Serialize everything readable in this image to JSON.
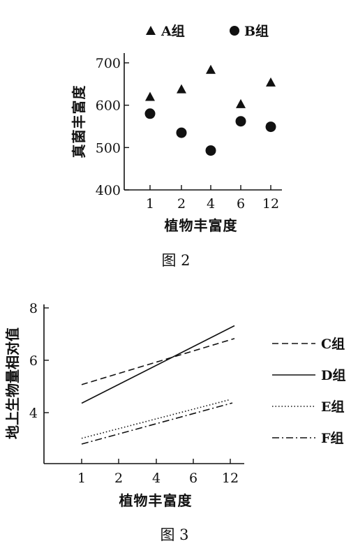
{
  "chart_data": [
    {
      "type": "scatter",
      "legend": {
        "placement": "top",
        "entries": [
          {
            "name": "A组",
            "marker": "triangle"
          },
          {
            "name": "B组",
            "marker": "circle"
          }
        ]
      },
      "categories": [
        "1",
        "2",
        "4",
        "6",
        "12"
      ],
      "series": [
        {
          "name": "A组",
          "marker": "triangle",
          "values": [
            620,
            638,
            684,
            603,
            654
          ]
        },
        {
          "name": "B组",
          "marker": "circle",
          "values": [
            580,
            535,
            493,
            562,
            549
          ]
        }
      ],
      "xlabel": "植物丰富度",
      "ylabel": "真菌丰富度",
      "yticks": [
        400,
        500,
        600,
        700
      ],
      "ylim": [
        400,
        700
      ],
      "caption": "图 2"
    },
    {
      "type": "line",
      "legend": {
        "placement": "right",
        "entries": [
          {
            "name": "C组",
            "style": "dashed"
          },
          {
            "name": "D组",
            "style": "solid"
          },
          {
            "name": "E组",
            "style": "dotted"
          },
          {
            "name": "F组",
            "style": "dashdot"
          }
        ]
      },
      "categories": [
        "1",
        "2",
        "4",
        "6",
        "12"
      ],
      "series": [
        {
          "name": "C组",
          "style": "dashed",
          "x": [
            1,
            12.4
          ],
          "y": [
            5.07,
            6.83
          ]
        },
        {
          "name": "D组",
          "style": "solid",
          "x": [
            1,
            12.4
          ],
          "y": [
            4.36,
            7.32
          ]
        },
        {
          "name": "E组",
          "style": "dotted",
          "x": [
            1,
            12
          ],
          "y": [
            3.02,
            4.5
          ]
        },
        {
          "name": "F组",
          "style": "dashdot",
          "x": [
            1,
            12.2
          ],
          "y": [
            2.8,
            4.37
          ]
        }
      ],
      "xlabel": "植物丰富度",
      "ylabel": "地上生物量相对值",
      "yticks": [
        4,
        6,
        8
      ],
      "ylim": [
        2.3,
        8
      ],
      "caption": "图 3"
    }
  ]
}
